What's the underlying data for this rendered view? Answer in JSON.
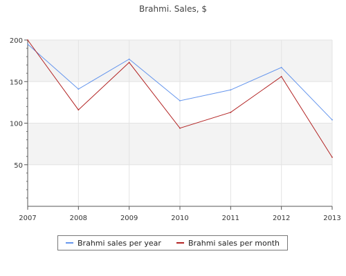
{
  "chart_data": {
    "type": "line",
    "title": "Brahmi. Sales, $",
    "xlabel": "",
    "ylabel": "",
    "categories": [
      "2007",
      "2008",
      "2009",
      "2010",
      "2011",
      "2012",
      "2013"
    ],
    "ylim": [
      0,
      200
    ],
    "yticks": [
      "50",
      "100",
      "150",
      "200"
    ],
    "grid": "horizontal bands and vertical gridlines",
    "legend_position": "bottom",
    "series": [
      {
        "name": "Brahmi sales per year",
        "color": "#6495ED",
        "values": [
          195,
          141,
          177,
          127,
          140,
          167,
          104
        ]
      },
      {
        "name": "Brahmi sales per month",
        "color": "#B22222",
        "values": [
          200,
          116,
          173,
          94,
          113,
          156,
          59
        ]
      }
    ]
  }
}
